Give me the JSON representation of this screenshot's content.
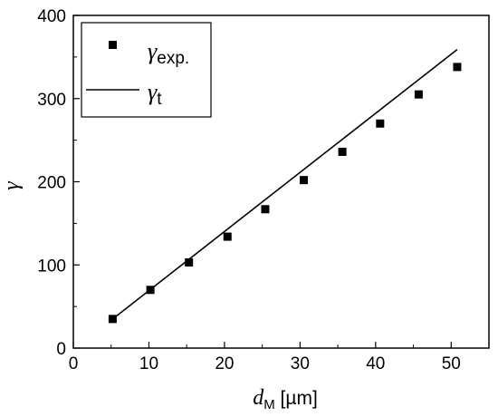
{
  "chart_data": {
    "type": "scatter",
    "xlabel": {
      "symbol": "d",
      "subscript": "M",
      "unit": "[µm]"
    },
    "ylabel": {
      "symbol": "γ"
    },
    "xlim": [
      0,
      55
    ],
    "ylim": [
      0,
      400
    ],
    "xticks": [
      "0",
      "10",
      "20",
      "30",
      "40",
      "50"
    ],
    "yticks": [
      "0",
      "100",
      "200",
      "300",
      "400"
    ],
    "legend_position": "top-left",
    "series": [
      {
        "name": "γexp.",
        "symbol": "γ",
        "subscript": "exp.",
        "kind": "scatter",
        "marker": "square",
        "color": "#000000",
        "points": [
          {
            "x": 5.2,
            "y": 35
          },
          {
            "x": 10.2,
            "y": 70
          },
          {
            "x": 15.3,
            "y": 103
          },
          {
            "x": 20.4,
            "y": 134
          },
          {
            "x": 25.4,
            "y": 167
          },
          {
            "x": 30.5,
            "y": 202
          },
          {
            "x": 35.6,
            "y": 236
          },
          {
            "x": 40.6,
            "y": 270
          },
          {
            "x": 45.7,
            "y": 305
          },
          {
            "x": 50.8,
            "y": 338
          }
        ]
      },
      {
        "name": "γt",
        "symbol": "γ",
        "subscript": "t",
        "kind": "line",
        "color": "#000000",
        "points": [
          {
            "x": 5.2,
            "y": 35
          },
          {
            "x": 50.8,
            "y": 359
          }
        ]
      }
    ]
  }
}
